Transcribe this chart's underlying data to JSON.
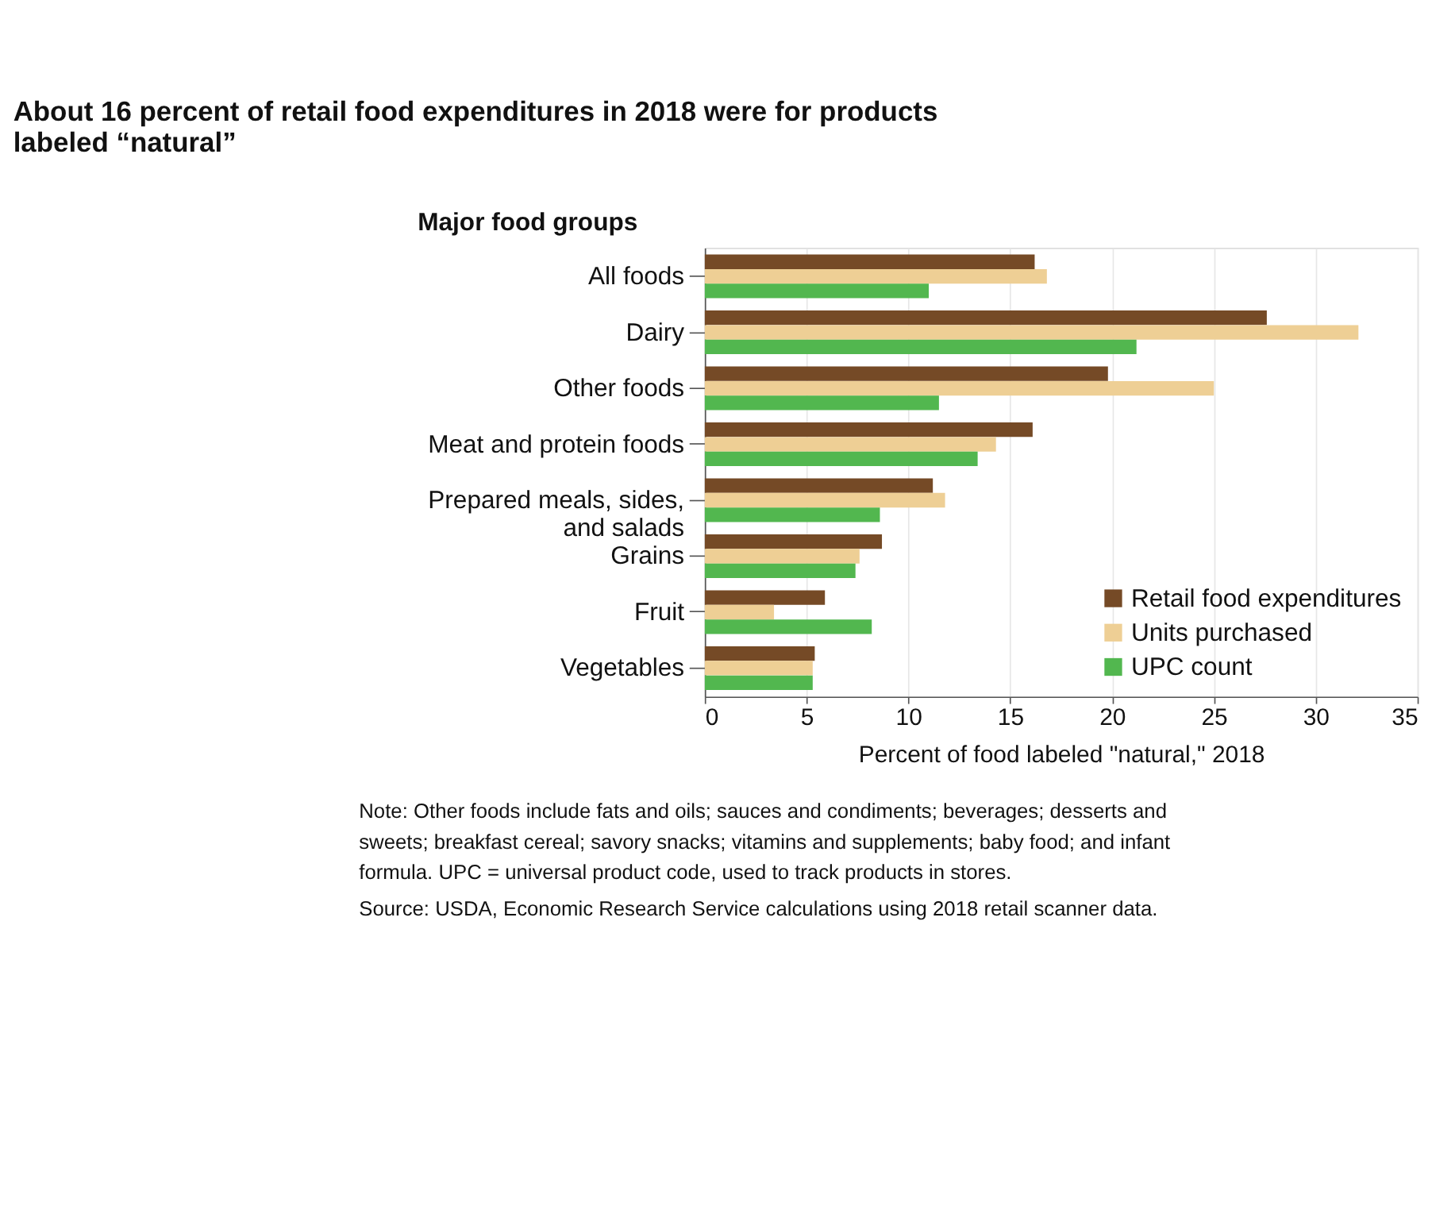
{
  "chart_data": {
    "type": "bar",
    "orientation": "horizontal",
    "title": "About 16 percent of retail food expenditures in 2018 were for products labeled “natural”",
    "ylabel": "Major food groups",
    "xlabel": "Percent of food labeled \"natural,\" 2018",
    "categories": [
      "All foods",
      "Dairy",
      "Other foods",
      "Meat and protein foods",
      "Prepared meals, sides, and salads",
      "Grains",
      "Fruit",
      "Vegetables"
    ],
    "series": [
      {
        "name": "Retail food expenditures",
        "color": "#754a26",
        "values": [
          16.2,
          27.6,
          19.8,
          16.1,
          11.2,
          8.7,
          5.9,
          5.4
        ]
      },
      {
        "name": "Units purchased",
        "color": "#eecf95",
        "values": [
          16.8,
          32.1,
          25.0,
          14.3,
          11.8,
          7.6,
          3.4,
          5.3
        ]
      },
      {
        "name": "UPC count",
        "color": "#52b74f",
        "values": [
          11.0,
          21.2,
          11.5,
          13.4,
          8.6,
          7.4,
          8.2,
          5.3
        ]
      }
    ],
    "xlim": [
      0,
      35
    ],
    "xticks": [
      0,
      5,
      10,
      15,
      20,
      25,
      30,
      35
    ],
    "grid": "x",
    "legend": "bottom right",
    "annotations": [
      "Note: Other foods include fats and oils; sauces and condiments; beverages; desserts and sweets; breakfast cereal; savory snacks; vitamins and supplements; baby food; and infant formula. UPC = universal product code, used to track products in stores.",
      "Source: USDA, Economic Research Service calculations using 2018 retail scanner data."
    ]
  }
}
